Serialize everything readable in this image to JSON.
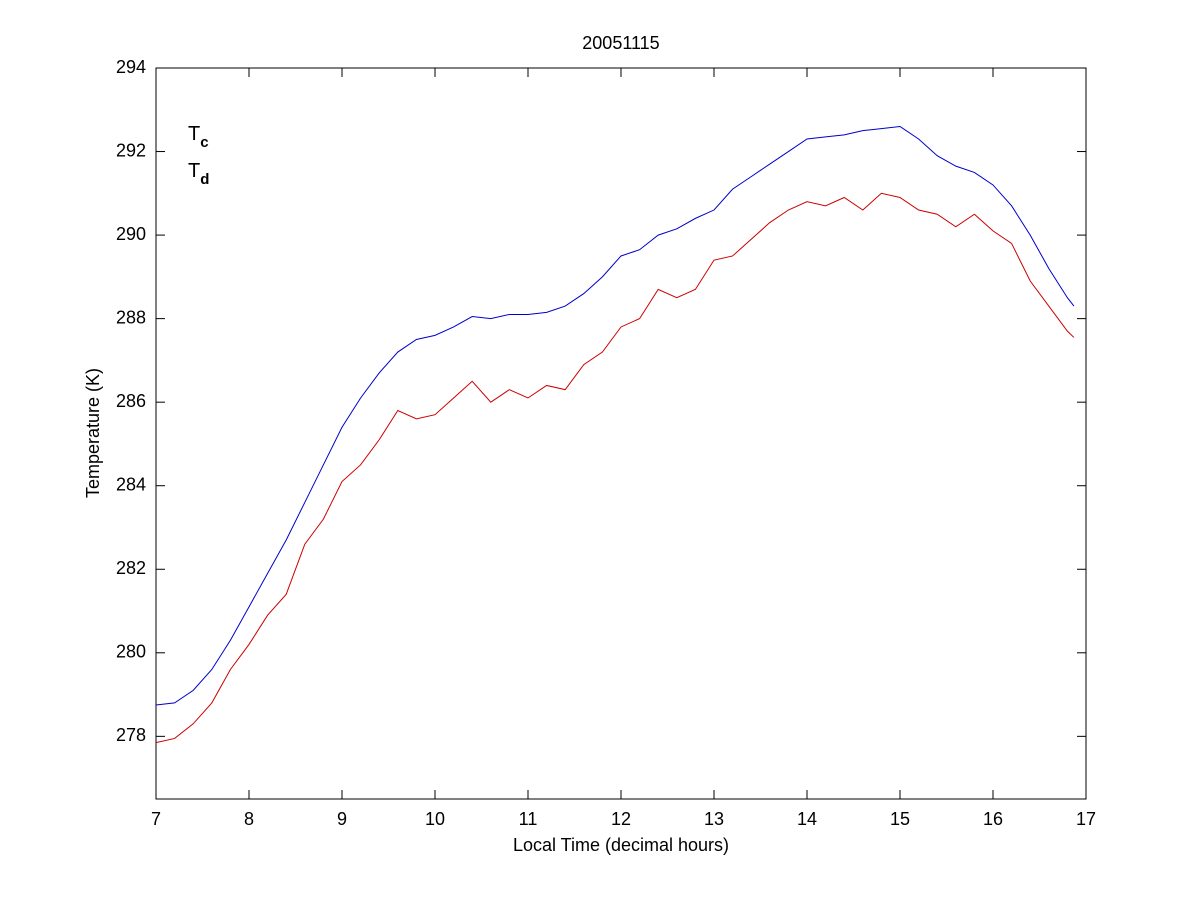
{
  "chart_data": {
    "type": "line",
    "title": "20051115",
    "x_label": "Local Time (decimal hours)",
    "y_label": "Temperature (K)",
    "x": [
      7.0,
      7.2,
      7.4,
      7.6,
      7.8,
      8.0,
      8.2,
      8.4,
      8.6,
      8.8,
      9.0,
      9.2,
      9.4,
      9.6,
      9.8,
      10.0,
      10.2,
      10.4,
      10.6,
      10.8,
      11.0,
      11.2,
      11.4,
      11.6,
      11.8,
      12.0,
      12.2,
      12.4,
      12.6,
      12.8,
      13.0,
      13.2,
      13.4,
      13.6,
      13.8,
      14.0,
      14.2,
      14.4,
      14.6,
      14.8,
      15.0,
      15.2,
      15.4,
      15.6,
      15.8,
      16.0,
      16.2,
      16.4,
      16.6,
      16.8,
      16.87
    ],
    "series": [
      {
        "name": "Tc",
        "color": "#0000cc",
        "values": [
          278.75,
          278.8,
          279.1,
          279.6,
          280.3,
          281.1,
          281.9,
          282.7,
          283.6,
          284.5,
          285.4,
          286.1,
          286.7,
          287.2,
          287.5,
          287.6,
          287.8,
          288.05,
          288.0,
          288.1,
          288.1,
          288.15,
          288.3,
          288.6,
          289.0,
          289.5,
          289.65,
          290.0,
          290.15,
          290.4,
          290.6,
          291.1,
          291.4,
          291.7,
          292.0,
          292.3,
          292.35,
          292.4,
          292.5,
          292.55,
          292.6,
          292.3,
          291.9,
          291.65,
          291.5,
          291.2,
          290.7,
          290.0,
          289.2,
          288.5,
          288.3
        ]
      },
      {
        "name": "Td",
        "color": "#cc0000",
        "values": [
          277.85,
          277.95,
          278.3,
          278.8,
          279.6,
          280.2,
          280.9,
          281.4,
          282.6,
          283.2,
          284.1,
          284.5,
          285.1,
          285.8,
          285.6,
          285.7,
          286.1,
          286.5,
          286.0,
          286.3,
          286.1,
          286.4,
          286.3,
          286.9,
          287.2,
          287.8,
          288.0,
          288.7,
          288.5,
          288.7,
          289.4,
          289.5,
          289.9,
          290.3,
          290.6,
          290.8,
          290.7,
          290.9,
          290.6,
          291.0,
          290.9,
          290.6,
          290.5,
          290.2,
          290.5,
          290.1,
          289.8,
          288.9,
          288.3,
          287.7,
          287.55
        ]
      }
    ],
    "xlim": [
      7,
      17
    ],
    "xticks": [
      7,
      8,
      9,
      10,
      11,
      12,
      13,
      14,
      15,
      16,
      17
    ],
    "ylim": [
      276.5,
      294
    ],
    "yticks": [
      278,
      280,
      282,
      284,
      286,
      288,
      290,
      292,
      294
    ],
    "legend": "upper left",
    "grid": false
  }
}
